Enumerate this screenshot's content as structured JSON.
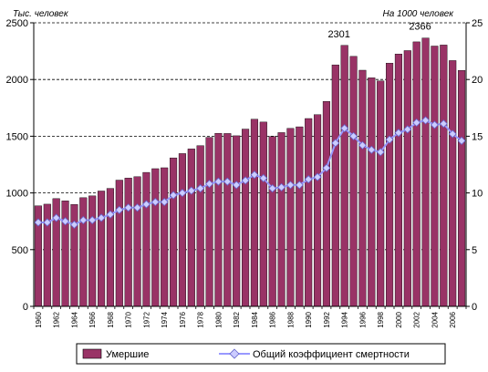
{
  "chart_data": {
    "type": "bar",
    "left_unit_label": "Тыс. человек",
    "right_unit_label": "На 1000 человек",
    "y_left_lim": [
      0,
      2500
    ],
    "y_left_ticks": [
      "0",
      "500",
      "1000",
      "1500",
      "2000",
      "2500"
    ],
    "y_right_lim": [
      0,
      25
    ],
    "y_right_ticks": [
      "0",
      "5",
      "10",
      "15",
      "20",
      "25"
    ],
    "gridlines": "dashed-horizontal",
    "legend_position": "bottom",
    "categories": [
      "1960",
      "1961",
      "1962",
      "1963",
      "1964",
      "1965",
      "1966",
      "1967",
      "1968",
      "1969",
      "1970",
      "1971",
      "1972",
      "1973",
      "1974",
      "1975",
      "1976",
      "1977",
      "1978",
      "1979",
      "1980",
      "1981",
      "1982",
      "1983",
      "1984",
      "1985",
      "1986",
      "1987",
      "1988",
      "1989",
      "1990",
      "1991",
      "1992",
      "1993",
      "1994",
      "1995",
      "1996",
      "1997",
      "1998",
      "1999",
      "2000",
      "2001",
      "2002",
      "2003",
      "2004",
      "2005",
      "2006",
      "2007"
    ],
    "x_tick_labels": [
      "1960",
      "1962",
      "1964",
      "1966",
      "1968",
      "1970",
      "1972",
      "1974",
      "1976",
      "1978",
      "1980",
      "1982",
      "1984",
      "1986",
      "1988",
      "1990",
      "1992",
      "1994",
      "1996",
      "1998",
      "2000",
      "2002",
      "2004",
      "2006"
    ],
    "series": [
      {
        "name": "Умершие",
        "type": "bar",
        "axis": "left",
        "color": "#993366",
        "values": [
          886,
          901,
          950,
          930,
          898,
          958,
          974,
          1017,
          1040,
          1113,
          1131,
          1143,
          1181,
          1214,
          1222,
          1309,
          1347,
          1388,
          1417,
          1490,
          1526,
          1524,
          1504,
          1563,
          1650,
          1625,
          1498,
          1532,
          1569,
          1583,
          1656,
          1690,
          1807,
          2129,
          2301,
          2204,
          2082,
          2015,
          1988,
          2144,
          2225,
          2255,
          2332,
          2366,
          2295,
          2304,
          2167,
          2080
        ]
      },
      {
        "name": "Общий коэффициент смертности",
        "type": "line",
        "axis": "right",
        "color": "#9999ff",
        "marker_color": "#ccccff",
        "values": [
          7.4,
          7.4,
          7.8,
          7.5,
          7.2,
          7.6,
          7.6,
          7.8,
          8.1,
          8.5,
          8.7,
          8.7,
          9.0,
          9.2,
          9.2,
          9.8,
          10.0,
          10.2,
          10.4,
          10.8,
          11.0,
          11.0,
          10.7,
          11.1,
          11.6,
          11.3,
          10.4,
          10.5,
          10.7,
          10.7,
          11.2,
          11.4,
          12.2,
          14.4,
          15.7,
          15.0,
          14.2,
          13.8,
          13.6,
          14.7,
          15.3,
          15.6,
          16.2,
          16.4,
          16.0,
          16.1,
          15.2,
          14.6
        ]
      }
    ],
    "annotations": [
      {
        "category": "1994",
        "text": "2301"
      },
      {
        "category": "2003",
        "text": "2366"
      }
    ]
  }
}
